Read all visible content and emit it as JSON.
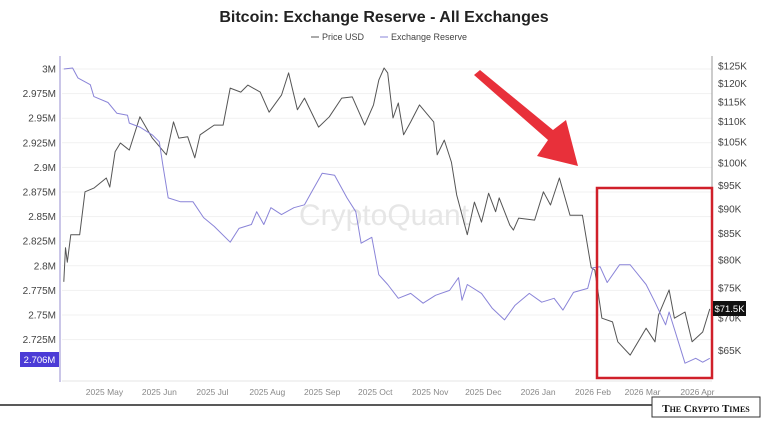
{
  "chart_data": {
    "type": "line",
    "title": "Bitcoin: Exchange Reserve - All Exchanges",
    "legend_position": "top",
    "grid": true,
    "watermark": "CryptoQuant",
    "x_ticks": [
      "2025 May",
      "2025 Jun",
      "2025 Jul",
      "2025 Aug",
      "2025 Sep",
      "2025 Oct",
      "2025 Nov",
      "2025 Dec",
      "2026 Jan",
      "2026 Feb",
      "2026 Mar",
      "2026 Apr"
    ],
    "x_tick_dates": [
      "2025-05-01",
      "2025-06-01",
      "2025-07-01",
      "2025-08-01",
      "2025-09-01",
      "2025-10-01",
      "2025-11-01",
      "2025-12-01",
      "2026-01-01",
      "2026-02-01",
      "2026-03-01",
      "2026-04-01"
    ],
    "left_axis": {
      "ticks": [
        "3M",
        "2.975M",
        "2.95M",
        "2.925M",
        "2.9M",
        "2.875M",
        "2.85M",
        "2.825M",
        "2.8M",
        "2.775M",
        "2.75M",
        "2.725M"
      ],
      "tick_values": [
        3,
        2.975,
        2.95,
        2.925,
        2.9,
        2.875,
        2.85,
        2.825,
        2.8,
        2.775,
        2.75,
        2.725
      ],
      "unit": "M",
      "ylim": [
        2.7,
        3.0
      ],
      "current_label": "2.706M",
      "current_value": 2.706,
      "current_color": "#4b3bd6"
    },
    "right_axis": {
      "ticks": [
        "$125K",
        "$120K",
        "$115K",
        "$110K",
        "$105K",
        "$100K",
        "$95K",
        "$90K",
        "$85K",
        "$80K",
        "$75K",
        "$70K",
        "$65K"
      ],
      "tick_values": [
        125,
        120,
        115,
        110,
        105,
        100,
        95,
        90,
        85,
        80,
        75,
        70,
        65
      ],
      "unit": "K USD",
      "scale": "log",
      "current_label": "$71.5K",
      "current_value": 71.5,
      "current_color": "#111111"
    },
    "series": [
      {
        "name": "Price USD",
        "axis": "right",
        "color": "#555555",
        "points": [
          [
            "2025-04-08",
            76.1
          ],
          [
            "2025-04-09",
            82.3
          ],
          [
            "2025-04-10",
            79.6
          ],
          [
            "2025-04-12",
            84.8
          ],
          [
            "2025-04-17",
            84.8
          ],
          [
            "2025-04-20",
            93.6
          ],
          [
            "2025-04-25",
            94.4
          ],
          [
            "2025-05-02",
            96.6
          ],
          [
            "2025-05-04",
            94.6
          ],
          [
            "2025-05-07",
            102.6
          ],
          [
            "2025-05-10",
            104.7
          ],
          [
            "2025-05-15",
            103.0
          ],
          [
            "2025-05-21",
            111.2
          ],
          [
            "2025-05-28",
            105.9
          ],
          [
            "2025-06-05",
            101.9
          ],
          [
            "2025-06-09",
            109.9
          ],
          [
            "2025-06-12",
            105.9
          ],
          [
            "2025-06-17",
            106.2
          ],
          [
            "2025-06-21",
            101.2
          ],
          [
            "2025-06-24",
            106.7
          ],
          [
            "2025-07-02",
            109.1
          ],
          [
            "2025-07-07",
            109.1
          ],
          [
            "2025-07-11",
            118.8
          ],
          [
            "2025-07-17",
            117.7
          ],
          [
            "2025-07-21",
            119.6
          ],
          [
            "2025-07-28",
            117.7
          ],
          [
            "2025-08-02",
            112.4
          ],
          [
            "2025-08-09",
            116.9
          ],
          [
            "2025-08-13",
            123.0
          ],
          [
            "2025-08-18",
            113.0
          ],
          [
            "2025-08-22",
            116.1
          ],
          [
            "2025-08-30",
            108.6
          ],
          [
            "2025-09-05",
            111.2
          ],
          [
            "2025-09-12",
            116.1
          ],
          [
            "2025-09-18",
            116.4
          ],
          [
            "2025-09-25",
            109.1
          ],
          [
            "2025-09-30",
            114.3
          ],
          [
            "2025-10-03",
            121.0
          ],
          [
            "2025-10-06",
            124.4
          ],
          [
            "2025-10-08",
            123.0
          ],
          [
            "2025-10-11",
            110.9
          ],
          [
            "2025-10-14",
            114.8
          ],
          [
            "2025-10-17",
            106.7
          ],
          [
            "2025-10-21",
            109.9
          ],
          [
            "2025-10-26",
            114.3
          ],
          [
            "2025-11-03",
            109.9
          ],
          [
            "2025-11-05",
            101.9
          ],
          [
            "2025-11-09",
            105.4
          ],
          [
            "2025-11-13",
            100.2
          ],
          [
            "2025-11-16",
            92.9
          ],
          [
            "2025-11-22",
            84.8
          ],
          [
            "2025-11-26",
            91.4
          ],
          [
            "2025-11-30",
            87.3
          ],
          [
            "2025-12-04",
            93.3
          ],
          [
            "2025-12-08",
            89.4
          ],
          [
            "2025-12-10",
            92.3
          ],
          [
            "2025-12-16",
            86.7
          ],
          [
            "2025-12-18",
            85.7
          ],
          [
            "2025-12-21",
            88.1
          ],
          [
            "2025-12-30",
            87.7
          ],
          [
            "2026-01-04",
            93.6
          ],
          [
            "2026-01-08",
            90.8
          ],
          [
            "2026-01-13",
            96.6
          ],
          [
            "2026-01-19",
            88.7
          ],
          [
            "2026-01-26",
            88.7
          ],
          [
            "2026-01-31",
            78.6
          ],
          [
            "2026-02-02",
            78.2
          ],
          [
            "2026-02-06",
            70.0
          ],
          [
            "2026-02-12",
            69.4
          ],
          [
            "2026-02-15",
            66.3
          ],
          [
            "2026-02-22",
            64.3
          ],
          [
            "2026-03-03",
            68.4
          ],
          [
            "2026-03-08",
            66.3
          ],
          [
            "2026-03-10",
            70.5
          ],
          [
            "2026-03-16",
            74.7
          ],
          [
            "2026-03-19",
            70.0
          ],
          [
            "2026-03-25",
            71.0
          ],
          [
            "2026-03-29",
            66.3
          ],
          [
            "2026-04-04",
            67.8
          ],
          [
            "2026-04-08",
            71.5
          ]
        ]
      },
      {
        "name": "Exchange Reserve",
        "axis": "left",
        "color": "#8a84d8",
        "points": [
          [
            "2025-04-08",
            3.0
          ],
          [
            "2025-04-13",
            3.001
          ],
          [
            "2025-04-16",
            2.991
          ],
          [
            "2025-04-23",
            2.984
          ],
          [
            "2025-04-25",
            2.972
          ],
          [
            "2025-05-03",
            2.966
          ],
          [
            "2025-05-08",
            2.955
          ],
          [
            "2025-05-14",
            2.953
          ],
          [
            "2025-05-15",
            2.945
          ],
          [
            "2025-05-21",
            2.941
          ],
          [
            "2025-05-28",
            2.933
          ],
          [
            "2025-06-01",
            2.926
          ],
          [
            "2025-06-03",
            2.902
          ],
          [
            "2025-06-06",
            2.869
          ],
          [
            "2025-06-13",
            2.865
          ],
          [
            "2025-06-20",
            2.865
          ],
          [
            "2025-06-26",
            2.849
          ],
          [
            "2025-07-02",
            2.84
          ],
          [
            "2025-07-11",
            2.824
          ],
          [
            "2025-07-16",
            2.838
          ],
          [
            "2025-07-23",
            2.842
          ],
          [
            "2025-07-26",
            2.855
          ],
          [
            "2025-07-30",
            2.842
          ],
          [
            "2025-08-03",
            2.859
          ],
          [
            "2025-08-09",
            2.852
          ],
          [
            "2025-08-16",
            2.859
          ],
          [
            "2025-08-22",
            2.862
          ],
          [
            "2025-08-26",
            2.875
          ],
          [
            "2025-09-01",
            2.894
          ],
          [
            "2025-09-08",
            2.892
          ],
          [
            "2025-09-15",
            2.869
          ],
          [
            "2025-09-20",
            2.855
          ],
          [
            "2025-09-23",
            2.823
          ],
          [
            "2025-09-29",
            2.829
          ],
          [
            "2025-10-03",
            2.791
          ],
          [
            "2025-10-08",
            2.781
          ],
          [
            "2025-10-14",
            2.767
          ],
          [
            "2025-10-21",
            2.772
          ],
          [
            "2025-10-28",
            2.762
          ],
          [
            "2025-11-04",
            2.77
          ],
          [
            "2025-11-12",
            2.775
          ],
          [
            "2025-11-17",
            2.788
          ],
          [
            "2025-11-19",
            2.765
          ],
          [
            "2025-11-22",
            2.781
          ],
          [
            "2025-11-30",
            2.772
          ],
          [
            "2025-12-06",
            2.757
          ],
          [
            "2025-12-13",
            2.745
          ],
          [
            "2025-12-19",
            2.76
          ],
          [
            "2025-12-27",
            2.772
          ],
          [
            "2026-01-03",
            2.763
          ],
          [
            "2026-01-10",
            2.767
          ],
          [
            "2026-01-15",
            2.755
          ],
          [
            "2026-01-21",
            2.773
          ],
          [
            "2026-01-29",
            2.777
          ],
          [
            "2026-02-01",
            2.798
          ],
          [
            "2026-02-05",
            2.799
          ],
          [
            "2026-02-09",
            2.783
          ],
          [
            "2026-02-16",
            2.801
          ],
          [
            "2026-02-22",
            2.801
          ],
          [
            "2026-03-03",
            2.781
          ],
          [
            "2026-03-08",
            2.763
          ],
          [
            "2026-03-14",
            2.74
          ],
          [
            "2026-03-16",
            2.753
          ],
          [
            "2026-03-25",
            2.701
          ],
          [
            "2026-03-31",
            2.706
          ],
          [
            "2026-04-04",
            2.702
          ],
          [
            "2026-04-08",
            2.706
          ]
        ]
      }
    ],
    "annotations": {
      "highlight_box_color": "#d0202a",
      "arrow_color": "#e8303a",
      "highlight_range": [
        "2026-02-01",
        "2026-04-08"
      ]
    }
  },
  "footer": {
    "logo": "The Crypto Times"
  }
}
